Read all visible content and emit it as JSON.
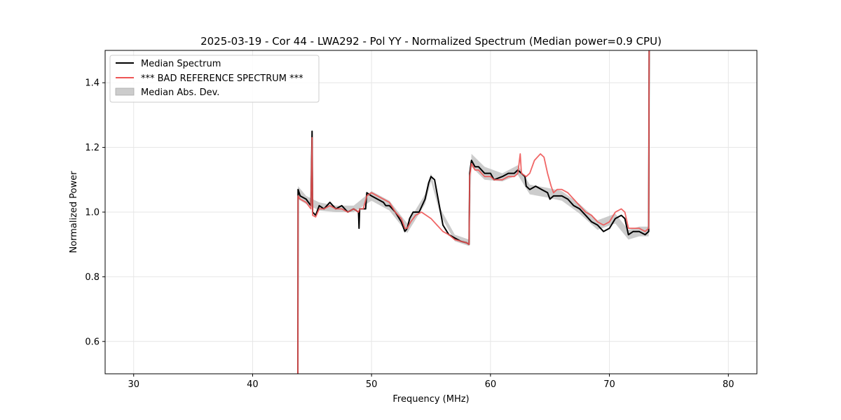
{
  "chart_data": {
    "type": "line",
    "title": "2025-03-19 - Cor 44 - LWA292 - Pol YY - Normalized Spectrum (Median power=0.9 CPU)",
    "xlabel": "Frequency (MHz)",
    "ylabel": "Normalized Power",
    "xlim": [
      27.6,
      82.4
    ],
    "ylim": [
      0.5,
      1.5
    ],
    "xticks": [
      30,
      40,
      50,
      60,
      70,
      80
    ],
    "xtick_labels": [
      "30",
      "40",
      "50",
      "60",
      "70",
      "80"
    ],
    "yticks": [
      0.6,
      0.8,
      1.0,
      1.2,
      1.4
    ],
    "ytick_labels": [
      "0.6",
      "0.8",
      "1.0",
      "1.2",
      "1.4"
    ],
    "grid": true,
    "legend_position": "top-left",
    "legend": [
      {
        "label": "Median Spectrum",
        "kind": "line",
        "color": "#000000"
      },
      {
        "label": "*** BAD REFERENCE SPECTRUM ***",
        "kind": "line",
        "color": "#ee5555"
      },
      {
        "label": "Median Abs. Dev.",
        "kind": "patch",
        "color": "#bbbbbb"
      }
    ],
    "series": [
      {
        "name": "Median Spectrum",
        "color": "#000000",
        "points": [
          [
            43.8,
            0.3
          ],
          [
            43.82,
            1.07
          ],
          [
            44.0,
            1.05
          ],
          [
            44.5,
            1.04
          ],
          [
            44.9,
            1.02
          ],
          [
            45.0,
            1.25
          ],
          [
            45.05,
            1.0
          ],
          [
            45.3,
            0.99
          ],
          [
            45.6,
            1.02
          ],
          [
            46.0,
            1.01
          ],
          [
            46.5,
            1.03
          ],
          [
            47.0,
            1.01
          ],
          [
            47.5,
            1.02
          ],
          [
            48.0,
            1.0
          ],
          [
            48.5,
            1.01
          ],
          [
            48.9,
            1.0
          ],
          [
            48.95,
            0.95
          ],
          [
            49.0,
            1.01
          ],
          [
            49.5,
            1.01
          ],
          [
            49.6,
            1.06
          ],
          [
            50.0,
            1.05
          ],
          [
            50.5,
            1.04
          ],
          [
            51.0,
            1.03
          ],
          [
            51.2,
            1.02
          ],
          [
            51.5,
            1.02
          ],
          [
            52.0,
            1.0
          ],
          [
            52.5,
            0.97
          ],
          [
            52.8,
            0.94
          ],
          [
            53.0,
            0.95
          ],
          [
            53.2,
            0.98
          ],
          [
            53.5,
            1.0
          ],
          [
            54.0,
            1.0
          ],
          [
            54.5,
            1.04
          ],
          [
            54.8,
            1.09
          ],
          [
            55.0,
            1.11
          ],
          [
            55.3,
            1.1
          ],
          [
            55.5,
            1.06
          ],
          [
            55.8,
            1.0
          ],
          [
            56.0,
            0.96
          ],
          [
            56.5,
            0.93
          ],
          [
            57.0,
            0.92
          ],
          [
            57.5,
            0.91
          ],
          [
            58.0,
            0.905
          ],
          [
            58.2,
            0.9
          ],
          [
            58.25,
            1.12
          ],
          [
            58.4,
            1.16
          ],
          [
            58.7,
            1.14
          ],
          [
            59.0,
            1.14
          ],
          [
            59.5,
            1.12
          ],
          [
            60.0,
            1.12
          ],
          [
            60.3,
            1.1
          ],
          [
            61.0,
            1.11
          ],
          [
            61.5,
            1.12
          ],
          [
            62.0,
            1.12
          ],
          [
            62.3,
            1.13
          ],
          [
            62.6,
            1.12
          ],
          [
            62.9,
            1.11
          ],
          [
            63.0,
            1.08
          ],
          [
            63.3,
            1.07
          ],
          [
            63.8,
            1.08
          ],
          [
            64.3,
            1.07
          ],
          [
            64.8,
            1.06
          ],
          [
            65.0,
            1.04
          ],
          [
            65.3,
            1.05
          ],
          [
            66.0,
            1.05
          ],
          [
            66.5,
            1.04
          ],
          [
            67.0,
            1.02
          ],
          [
            67.5,
            1.01
          ],
          [
            68.0,
            0.99
          ],
          [
            68.5,
            0.97
          ],
          [
            69.0,
            0.96
          ],
          [
            69.5,
            0.94
          ],
          [
            70.0,
            0.95
          ],
          [
            70.5,
            0.98
          ],
          [
            71.0,
            0.99
          ],
          [
            71.3,
            0.98
          ],
          [
            71.6,
            0.93
          ],
          [
            72.0,
            0.94
          ],
          [
            72.5,
            0.94
          ],
          [
            73.0,
            0.93
          ],
          [
            73.3,
            0.94
          ],
          [
            73.35,
            1.6
          ]
        ]
      },
      {
        "name": "*** BAD REFERENCE SPECTRUM ***",
        "color": "#ee5555",
        "points": [
          [
            43.8,
            0.3
          ],
          [
            43.82,
            1.05
          ],
          [
            44.0,
            1.04
          ],
          [
            44.5,
            1.03
          ],
          [
            44.9,
            1.01
          ],
          [
            45.0,
            1.23
          ],
          [
            45.05,
            0.99
          ],
          [
            45.3,
            0.985
          ],
          [
            45.6,
            1.01
          ],
          [
            46.0,
            1.01
          ],
          [
            46.5,
            1.02
          ],
          [
            47.0,
            1.01
          ],
          [
            47.5,
            1.01
          ],
          [
            48.0,
            1.0
          ],
          [
            48.5,
            1.01
          ],
          [
            48.9,
            1.0
          ],
          [
            49.0,
            1.01
          ],
          [
            49.3,
            1.01
          ],
          [
            49.6,
            1.05
          ],
          [
            50.0,
            1.06
          ],
          [
            50.5,
            1.05
          ],
          [
            51.0,
            1.04
          ],
          [
            51.5,
            1.03
          ],
          [
            52.0,
            1.0
          ],
          [
            52.5,
            0.98
          ],
          [
            52.8,
            0.95
          ],
          [
            53.0,
            0.95
          ],
          [
            53.3,
            0.97
          ],
          [
            53.7,
            0.99
          ],
          [
            54.2,
            1.0
          ],
          [
            54.6,
            0.99
          ],
          [
            55.0,
            0.98
          ],
          [
            55.5,
            0.96
          ],
          [
            56.0,
            0.94
          ],
          [
            56.5,
            0.93
          ],
          [
            57.0,
            0.915
          ],
          [
            57.5,
            0.91
          ],
          [
            58.0,
            0.905
          ],
          [
            58.2,
            0.9
          ],
          [
            58.25,
            1.11
          ],
          [
            58.4,
            1.15
          ],
          [
            58.7,
            1.13
          ],
          [
            59.0,
            1.13
          ],
          [
            59.5,
            1.11
          ],
          [
            60.0,
            1.11
          ],
          [
            60.3,
            1.1
          ],
          [
            61.0,
            1.1
          ],
          [
            61.5,
            1.11
          ],
          [
            62.0,
            1.11
          ],
          [
            62.3,
            1.12
          ],
          [
            62.5,
            1.18
          ],
          [
            62.6,
            1.12
          ],
          [
            63.0,
            1.11
          ],
          [
            63.3,
            1.12
          ],
          [
            63.7,
            1.16
          ],
          [
            64.2,
            1.18
          ],
          [
            64.5,
            1.17
          ],
          [
            64.8,
            1.12
          ],
          [
            65.1,
            1.08
          ],
          [
            65.3,
            1.06
          ],
          [
            65.6,
            1.07
          ],
          [
            66.0,
            1.07
          ],
          [
            66.5,
            1.06
          ],
          [
            67.0,
            1.04
          ],
          [
            67.5,
            1.02
          ],
          [
            68.0,
            1.0
          ],
          [
            68.5,
            0.99
          ],
          [
            69.0,
            0.97
          ],
          [
            69.5,
            0.96
          ],
          [
            70.0,
            0.97
          ],
          [
            70.5,
            1.0
          ],
          [
            71.0,
            1.01
          ],
          [
            71.3,
            1.0
          ],
          [
            71.6,
            0.95
          ],
          [
            72.0,
            0.95
          ],
          [
            72.5,
            0.95
          ],
          [
            73.0,
            0.94
          ],
          [
            73.3,
            0.95
          ],
          [
            73.35,
            1.6
          ]
        ]
      }
    ],
    "median_abs_dev": {
      "name": "Median Abs. Dev.",
      "color": "#bbbbbb",
      "x": [
        43.82,
        44.5,
        45.6,
        47.0,
        48.5,
        50.0,
        51.5,
        53.0,
        54.5,
        55.0,
        55.8,
        57.0,
        58.2,
        58.4,
        59.5,
        61.0,
        62.3,
        63.3,
        64.8,
        66.0,
        67.5,
        69.0,
        70.5,
        71.6,
        72.5,
        73.3
      ],
      "upper": [
        1.08,
        1.05,
        1.03,
        1.02,
        1.02,
        1.065,
        1.035,
        0.965,
        1.055,
        1.12,
        1.01,
        0.93,
        0.915,
        1.18,
        1.14,
        1.12,
        1.145,
        1.085,
        1.075,
        1.065,
        1.025,
        0.975,
        0.995,
        0.945,
        0.955,
        0.955
      ],
      "lower": [
        1.04,
        1.025,
        1.005,
        1.0,
        1.0,
        1.035,
        1.005,
        0.935,
        1.025,
        1.095,
        0.99,
        0.91,
        0.895,
        1.14,
        1.1,
        1.095,
        1.115,
        1.055,
        1.045,
        1.035,
        0.995,
        0.945,
        0.965,
        0.915,
        0.925,
        0.925
      ]
    }
  }
}
